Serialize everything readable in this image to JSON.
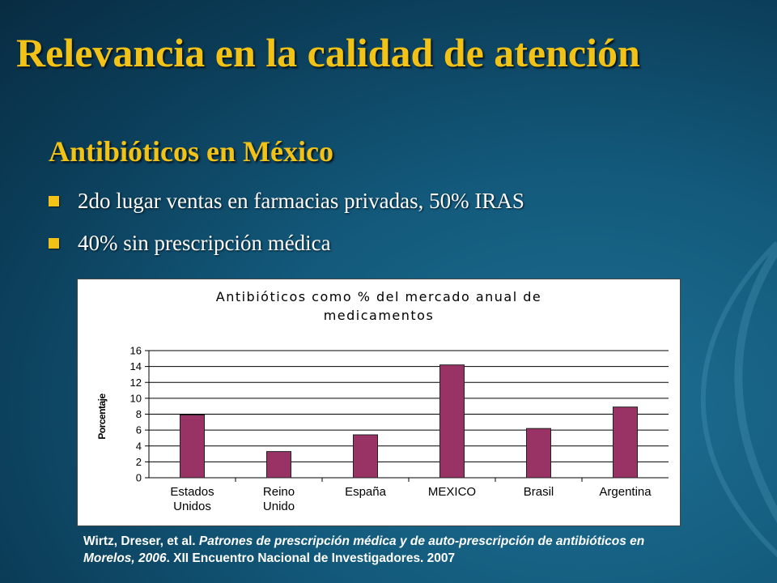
{
  "slide": {
    "title": "Relevancia en la calidad de atención",
    "subtitle": "Antibióticos en México",
    "bullets": [
      "2do lugar ventas en farmacias privadas, 50% IRAS",
      "40% sin prescripción médica"
    ],
    "citation": {
      "authors": "Wirtz, Dreser, et al. ",
      "work_title": "Patrones de prescripción médica y de auto-prescripción de antibióticos en Morelos, 2006",
      "rest": ". XII Encuentro Nacional de Investigadores. 2007"
    }
  },
  "colors": {
    "title": "#f2c316",
    "bar": "#993366",
    "background": "#135a7c"
  },
  "chart_data": {
    "type": "bar",
    "title_lines": [
      "Antibióticos como % del mercado anual de",
      "medicamentos"
    ],
    "ylabel": "Porcentaje",
    "xlabel": "",
    "categories": [
      [
        "Estados",
        "Unidos"
      ],
      [
        "Reino",
        "Unido"
      ],
      [
        "España"
      ],
      [
        "MEXICO"
      ],
      [
        "Brasil"
      ],
      [
        "Argentina"
      ]
    ],
    "values": [
      7.9,
      3.3,
      5.4,
      14.2,
      6.2,
      8.9
    ],
    "ylim": [
      0,
      16
    ],
    "yticks": [
      0,
      2,
      4,
      6,
      8,
      10,
      12,
      14,
      16
    ],
    "grid": true,
    "legend": "none"
  }
}
